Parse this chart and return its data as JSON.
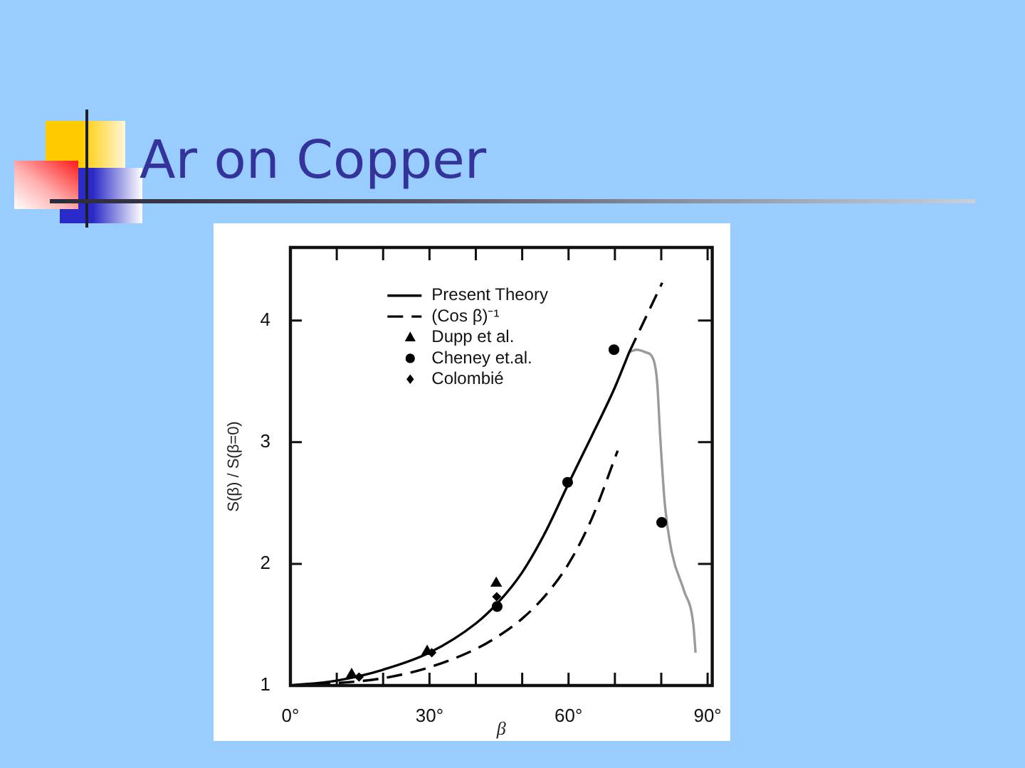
{
  "chart_data": {
    "type": "line",
    "title": "Ar on Copper",
    "xlabel": "β",
    "ylabel": "S(β) / S(β=0)",
    "xlim": [
      0,
      91
    ],
    "ylim": [
      1,
      4.6
    ],
    "xticks": [
      {
        "value": 0,
        "label": "0°"
      },
      {
        "value": 10,
        "label": null
      },
      {
        "value": 20,
        "label": null
      },
      {
        "value": 30,
        "label": "30°"
      },
      {
        "value": 40,
        "label": null
      },
      {
        "value": 50,
        "label": null
      },
      {
        "value": 60,
        "label": "60°"
      },
      {
        "value": 70,
        "label": null
      },
      {
        "value": 80,
        "label": null
      },
      {
        "value": 90,
        "label": "90°"
      }
    ],
    "yticks": [
      1,
      2,
      3,
      4
    ],
    "legend": "top left",
    "series": [
      {
        "name": "Present Theory",
        "type": "line",
        "color": "#000000",
        "line_style": "solid",
        "x": [
          0,
          10,
          20,
          30,
          40,
          45,
          50,
          55,
          60,
          65,
          70,
          73.1
        ],
        "values": [
          1,
          1.04,
          1.13,
          1.27,
          1.51,
          1.69,
          1.93,
          2.26,
          2.66,
          3.05,
          3.45,
          3.74
        ]
      },
      {
        "name": "(Cos β)⁻¹",
        "type": "line",
        "color": "#000000",
        "line_style": "dashed",
        "x": [
          0,
          10,
          20,
          30,
          40,
          45,
          50,
          55,
          60,
          65,
          70.6
        ],
        "values": [
          1,
          1.02,
          1.06,
          1.15,
          1.3,
          1.41,
          1.55,
          1.74,
          2.0,
          2.37,
          2.93
        ]
      },
      {
        "name": "Dupp et al.",
        "type": "scatter",
        "color": "#000000",
        "marker": "triangle",
        "x": [
          13.2,
          29.5,
          44.4
        ],
        "values": [
          1.09,
          1.28,
          1.84
        ]
      },
      {
        "name": "Cheney et.al.",
        "type": "scatter",
        "color": "#000000",
        "marker": "circle",
        "x": [
          44.6,
          59.8,
          69.8,
          80.1
        ],
        "values": [
          1.65,
          2.67,
          3.76,
          2.34
        ]
      },
      {
        "name": "Colombié",
        "type": "scatter",
        "color": "#000000",
        "marker": "diamond",
        "x": [
          14.8,
          30.5,
          44.5
        ],
        "values": [
          1.07,
          1.27,
          1.73
        ]
      },
      {
        "type": "line",
        "color": "#000000",
        "line_style": "dashed",
        "x": [
          73.1,
          76.6,
          80.2
        ],
        "values": [
          3.74,
          4.02,
          4.31
        ]
      },
      {
        "type": "line",
        "color": "#9a9a9a",
        "line_style": "solid",
        "x": [
          73.1,
          74.7,
          76.5,
          78.3,
          79.1,
          79.8,
          80.8,
          82.3,
          84.9,
          86.9,
          87.4
        ],
        "values": [
          3.74,
          3.76,
          3.74,
          3.68,
          3.5,
          3.03,
          2.48,
          2.09,
          1.78,
          1.51,
          1.27
        ]
      }
    ]
  }
}
